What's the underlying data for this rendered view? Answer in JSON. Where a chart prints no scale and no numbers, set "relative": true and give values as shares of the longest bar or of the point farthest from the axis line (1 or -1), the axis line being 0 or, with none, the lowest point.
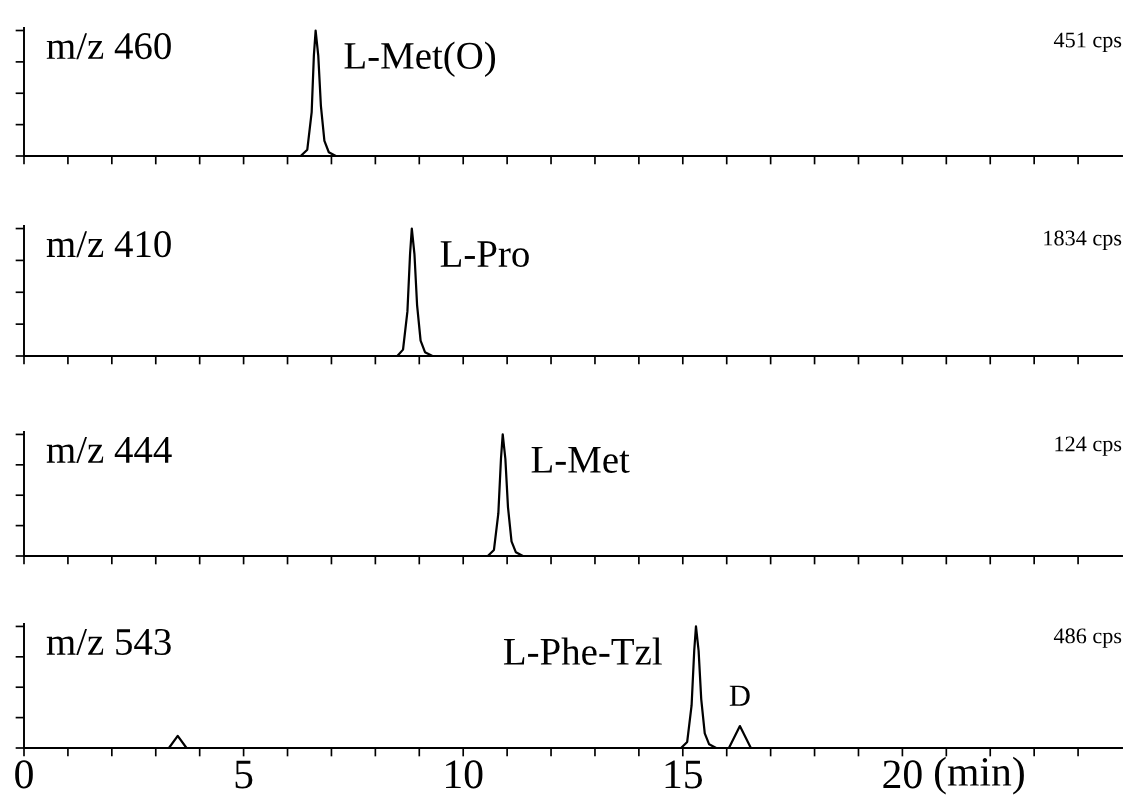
{
  "chart_data": [
    {
      "type": "line",
      "relative": true,
      "tick_labels": false,
      "grid": false,
      "legend": false,
      "marker": "none",
      "line_style": "solid",
      "xlim": [
        0,
        25
      ],
      "xticks": [
        {
          "value": 0,
          "label": null
        },
        {
          "value": 1,
          "label": null
        },
        {
          "value": 2,
          "label": null
        },
        {
          "value": 3,
          "label": null
        },
        {
          "value": 4,
          "label": null
        },
        {
          "value": 5,
          "label": null
        },
        {
          "value": 6,
          "label": null
        },
        {
          "value": 7,
          "label": null
        },
        {
          "value": 8,
          "label": null
        },
        {
          "value": 9,
          "label": null
        },
        {
          "value": 10,
          "label": null
        },
        {
          "value": 11,
          "label": null
        },
        {
          "value": 12,
          "label": null
        },
        {
          "value": 13,
          "label": null
        },
        {
          "value": 14,
          "label": null
        },
        {
          "value": 15,
          "label": null
        },
        {
          "value": 16,
          "label": null
        },
        {
          "value": 17,
          "label": null
        },
        {
          "value": 18,
          "label": null
        },
        {
          "value": 19,
          "label": null
        },
        {
          "value": 20,
          "label": null
        },
        {
          "value": 21,
          "label": null
        },
        {
          "value": 22,
          "label": null
        },
        {
          "value": 23,
          "label": null
        },
        {
          "value": 24,
          "label": null
        }
      ],
      "annotations": [
        "m/z 460",
        "451 cps",
        {
          "text": "L-Met(O)",
          "x": 6.64,
          "y": 1
        }
      ],
      "series": [
        {
          "color": "#000000",
          "x": [
            0,
            6.3,
            6.45,
            6.55,
            6.6,
            6.64,
            6.7,
            6.76,
            6.84,
            6.94,
            7.1,
            25
          ],
          "values": [
            0,
            0,
            0.05,
            0.35,
            0.8,
            1,
            0.8,
            0.4,
            0.12,
            0.03,
            0,
            0
          ]
        }
      ]
    },
    {
      "type": "line",
      "relative": true,
      "tick_labels": false,
      "grid": false,
      "legend": false,
      "marker": "none",
      "line_style": "solid",
      "xlim": [
        0,
        25
      ],
      "xticks": [
        {
          "value": 0,
          "label": null
        },
        {
          "value": 1,
          "label": null
        },
        {
          "value": 2,
          "label": null
        },
        {
          "value": 3,
          "label": null
        },
        {
          "value": 4,
          "label": null
        },
        {
          "value": 5,
          "label": null
        },
        {
          "value": 6,
          "label": null
        },
        {
          "value": 7,
          "label": null
        },
        {
          "value": 8,
          "label": null
        },
        {
          "value": 9,
          "label": null
        },
        {
          "value": 10,
          "label": null
        },
        {
          "value": 11,
          "label": null
        },
        {
          "value": 12,
          "label": null
        },
        {
          "value": 13,
          "label": null
        },
        {
          "value": 14,
          "label": null
        },
        {
          "value": 15,
          "label": null
        },
        {
          "value": 16,
          "label": null
        },
        {
          "value": 17,
          "label": null
        },
        {
          "value": 18,
          "label": null
        },
        {
          "value": 19,
          "label": null
        },
        {
          "value": 20,
          "label": null
        },
        {
          "value": 21,
          "label": null
        },
        {
          "value": 22,
          "label": null
        },
        {
          "value": 23,
          "label": null
        },
        {
          "value": 24,
          "label": null
        }
      ],
      "annotations": [
        "m/z 410",
        "1834 cps",
        {
          "text": "L-Pro",
          "x": 8.83,
          "y": 1
        }
      ],
      "series": [
        {
          "color": "#000000",
          "x": [
            0,
            8.5,
            8.63,
            8.73,
            8.79,
            8.83,
            8.89,
            8.95,
            9.03,
            9.13,
            9.3,
            25
          ],
          "values": [
            0,
            0,
            0.05,
            0.35,
            0.8,
            1,
            0.8,
            0.4,
            0.12,
            0.03,
            0,
            0
          ]
        }
      ]
    },
    {
      "type": "line",
      "relative": true,
      "tick_labels": false,
      "grid": false,
      "legend": false,
      "marker": "none",
      "line_style": "solid",
      "xlim": [
        0,
        25
      ],
      "xticks": [
        {
          "value": 0,
          "label": null
        },
        {
          "value": 1,
          "label": null
        },
        {
          "value": 2,
          "label": null
        },
        {
          "value": 3,
          "label": null
        },
        {
          "value": 4,
          "label": null
        },
        {
          "value": 5,
          "label": null
        },
        {
          "value": 6,
          "label": null
        },
        {
          "value": 7,
          "label": null
        },
        {
          "value": 8,
          "label": null
        },
        {
          "value": 9,
          "label": null
        },
        {
          "value": 10,
          "label": null
        },
        {
          "value": 11,
          "label": null
        },
        {
          "value": 12,
          "label": null
        },
        {
          "value": 13,
          "label": null
        },
        {
          "value": 14,
          "label": null
        },
        {
          "value": 15,
          "label": null
        },
        {
          "value": 16,
          "label": null
        },
        {
          "value": 17,
          "label": null
        },
        {
          "value": 18,
          "label": null
        },
        {
          "value": 19,
          "label": null
        },
        {
          "value": 20,
          "label": null
        },
        {
          "value": 21,
          "label": null
        },
        {
          "value": 22,
          "label": null
        },
        {
          "value": 23,
          "label": null
        },
        {
          "value": 24,
          "label": null
        }
      ],
      "annotations": [
        "m/z 444",
        "124 cps",
        {
          "text": "L-Met",
          "x": 10.9,
          "y": 1
        }
      ],
      "series": [
        {
          "color": "#000000",
          "x": [
            0,
            10.56,
            10.7,
            10.8,
            10.86,
            10.9,
            10.96,
            11.02,
            11.1,
            11.2,
            11.36,
            25
          ],
          "values": [
            0,
            0,
            0.05,
            0.35,
            0.8,
            1,
            0.8,
            0.4,
            0.12,
            0.03,
            0,
            0
          ]
        }
      ]
    },
    {
      "type": "line",
      "relative": true,
      "tick_labels": "x",
      "grid": false,
      "legend": false,
      "marker": "none",
      "line_style": "solid",
      "xlim": [
        0,
        25
      ],
      "xlabel": "(min)",
      "xticks": [
        0,
        {
          "value": 1,
          "label": null
        },
        {
          "value": 2,
          "label": null
        },
        {
          "value": 3,
          "label": null
        },
        {
          "value": 4,
          "label": null
        },
        5,
        {
          "value": 6,
          "label": null
        },
        {
          "value": 7,
          "label": null
        },
        {
          "value": 8,
          "label": null
        },
        {
          "value": 9,
          "label": null
        },
        10,
        {
          "value": 11,
          "label": null
        },
        {
          "value": 12,
          "label": null
        },
        {
          "value": 13,
          "label": null
        },
        {
          "value": 14,
          "label": null
        },
        15,
        {
          "value": 16,
          "label": null
        },
        {
          "value": 17,
          "label": null
        },
        {
          "value": 18,
          "label": null
        },
        {
          "value": 19,
          "label": null
        },
        20,
        {
          "value": 21,
          "label": null
        },
        {
          "value": 22,
          "label": null
        },
        {
          "value": 23,
          "label": null
        },
        {
          "value": 24,
          "label": null
        }
      ],
      "annotations": [
        "m/z 543",
        "486 cps",
        {
          "text": "L-Phe-Tzl",
          "x": 15.3,
          "y": 1
        },
        {
          "text": "D",
          "x": 16.3,
          "y": 0.18
        }
      ],
      "series": [
        {
          "color": "#000000",
          "x": [
            0,
            3.3,
            3.5,
            3.7,
            14.96,
            15.1,
            15.2,
            15.26,
            15.3,
            15.36,
            15.42,
            15.5,
            15.6,
            15.76,
            16.05,
            16.3,
            16.55,
            25
          ],
          "values": [
            0,
            0,
            0.1,
            0,
            0,
            0.05,
            0.35,
            0.8,
            1,
            0.8,
            0.4,
            0.12,
            0.03,
            0,
            0,
            0.18,
            0,
            0
          ]
        }
      ]
    }
  ]
}
